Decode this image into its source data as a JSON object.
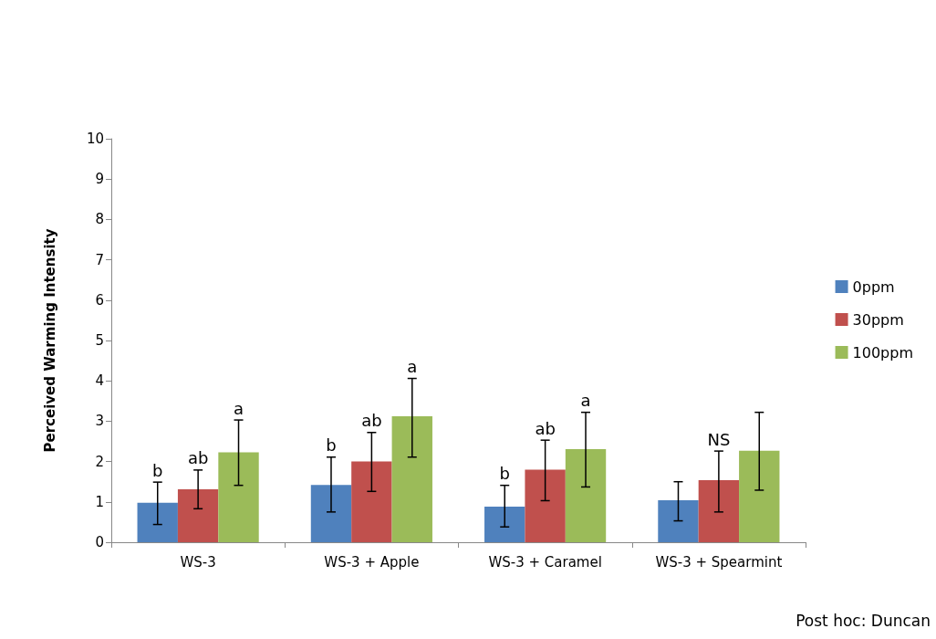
{
  "chart_data": {
    "type": "bar",
    "categories": [
      "WS-3",
      "WS-3 + Apple",
      "WS-3 + Caramel",
      "WS-3 + Spearmint"
    ],
    "ylabel": "Perceived Warming Intensity",
    "ylim": [
      0,
      10
    ],
    "yticks": [
      0,
      1,
      2,
      3,
      4,
      5,
      6,
      7,
      8,
      9,
      10
    ],
    "grid": false,
    "legend": "right",
    "series": [
      {
        "name": "0ppm",
        "color": "#4f81bd",
        "values": [
          0.98,
          1.42,
          0.88,
          1.04
        ],
        "errors": [
          [
            0.44,
            1.49
          ],
          [
            0.75,
            2.11
          ],
          [
            0.38,
            1.41
          ],
          [
            0.53,
            1.5
          ]
        ],
        "value_labels": [
          "b",
          "b",
          "b",
          null
        ]
      },
      {
        "name": "30ppm",
        "color": "#c0504d",
        "values": [
          1.31,
          2.0,
          1.8,
          1.54
        ],
        "errors": [
          [
            0.83,
            1.79
          ],
          [
            1.26,
            2.72
          ],
          [
            1.03,
            2.53
          ],
          [
            0.75,
            2.26
          ]
        ],
        "value_labels": [
          "ab",
          "ab",
          "ab",
          "NS"
        ]
      },
      {
        "name": "100ppm",
        "color": "#9bbb59",
        "values": [
          2.23,
          3.12,
          2.31,
          2.27
        ],
        "errors": [
          [
            1.41,
            3.03
          ],
          [
            2.11,
            4.06
          ],
          [
            1.37,
            3.22
          ],
          [
            1.29,
            3.22
          ]
        ],
        "value_labels": [
          "a",
          "a",
          "a",
          null
        ]
      }
    ],
    "annotations": [
      "Post hoc: Duncan"
    ]
  }
}
